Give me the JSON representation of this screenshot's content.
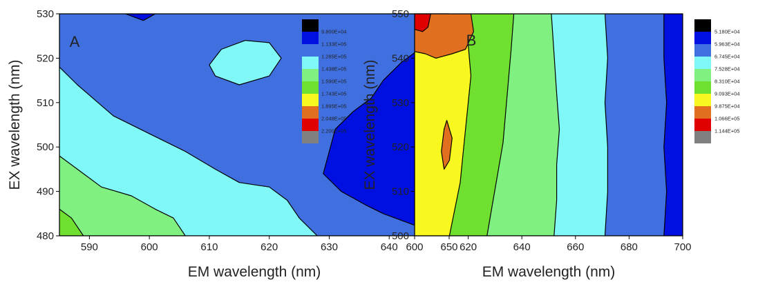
{
  "chart_data": [
    {
      "type": "heatmap",
      "subtype": "contour",
      "panel_label": "A",
      "xlabel": "EM wavelength (nm)",
      "ylabel": "EX wavelength (nm)",
      "xlim": [
        585,
        650
      ],
      "ylim": [
        480,
        530
      ],
      "x_ticks": [
        590,
        600,
        610,
        620,
        630,
        640,
        650
      ],
      "y_ticks": [
        480,
        490,
        500,
        510,
        520,
        530
      ],
      "legend_position": "right",
      "levels": [
        {
          "label": "9.800E+04",
          "color": "#000000"
        },
        {
          "label": "1.133E+05",
          "color": "#0010e0"
        },
        {
          "label": "1.285E+05",
          "color": "#4070e0"
        },
        {
          "label": "1.438E+05",
          "color": "#80f8f8"
        },
        {
          "label": "1.590E+05",
          "color": "#80f080"
        },
        {
          "label": "1.743E+05",
          "color": "#70e030"
        },
        {
          "label": "1.895E+05",
          "color": "#f8f820"
        },
        {
          "label": "2.048E+05",
          "color": "#e07020"
        },
        {
          "label": "2.200E+05",
          "color": "#e00000"
        },
        {
          "label": "",
          "color": "#808080"
        }
      ],
      "regions": [
        {
          "level": 2,
          "polygon": [
            [
              585,
              530
            ],
            [
              650,
              530
            ],
            [
              650,
              480
            ],
            [
              585,
              480
            ]
          ]
        },
        {
          "level": 3,
          "polygon": [
            [
              585,
              518
            ],
            [
              588,
              514
            ],
            [
              594,
              507
            ],
            [
              600,
              503
            ],
            [
              606,
              499
            ],
            [
              611,
              495
            ],
            [
              615,
              492
            ],
            [
              620,
              491
            ],
            [
              623,
              488
            ],
            [
              625,
              484
            ],
            [
              628,
              480
            ],
            [
              585,
              480
            ]
          ]
        },
        {
          "level": 4,
          "polygon": [
            [
              585,
              498
            ],
            [
              588,
              495
            ],
            [
              592,
              491
            ],
            [
              597,
              489
            ],
            [
              601,
              486
            ],
            [
              604,
              484
            ],
            [
              606,
              480
            ],
            [
              585,
              480
            ]
          ]
        },
        {
          "level": 5,
          "polygon": [
            [
              585,
              486
            ],
            [
              587,
              484
            ],
            [
              589,
              480
            ],
            [
              585,
              480
            ]
          ]
        },
        {
          "level": 3,
          "polygon": [
            [
              610,
              518.5
            ],
            [
              612,
              522
            ],
            [
              616,
              524
            ],
            [
              620,
              523.5
            ],
            [
              622,
              520
            ],
            [
              620,
              516
            ],
            [
              615,
              514
            ],
            [
              611,
              516
            ]
          ]
        },
        {
          "level": 1,
          "polygon": [
            [
              650,
              530
            ],
            [
              650,
              480
            ],
            [
              647,
              481
            ],
            [
              643,
              483
            ],
            [
              639,
              485
            ],
            [
              636,
              487
            ],
            [
              632,
              490
            ],
            [
              629,
              494
            ],
            [
              630,
              499
            ],
            [
              631,
              504
            ],
            [
              634,
              508
            ],
            [
              637,
              511
            ],
            [
              639,
              515
            ],
            [
              642,
              519
            ],
            [
              645,
              522
            ],
            [
              648,
              526
            ],
            [
              650,
              530
            ]
          ]
        },
        {
          "level": 1,
          "polygon": [
            [
              596,
              530
            ],
            [
              599,
              528.5
            ],
            [
              601,
              530
            ]
          ]
        }
      ]
    },
    {
      "type": "heatmap",
      "subtype": "contour",
      "panel_label": "B",
      "xlabel": "EM wavelength (nm)",
      "ylabel": "EX wavelength (nm)",
      "xlim": [
        600,
        700
      ],
      "ylim": [
        500,
        550
      ],
      "x_ticks": [
        600,
        620,
        640,
        660,
        680,
        700
      ],
      "y_ticks": [
        500,
        510,
        520,
        530,
        540,
        550
      ],
      "legend_position": "right",
      "levels": [
        {
          "label": "5.180E+04",
          "color": "#000000"
        },
        {
          "label": "5.963E+04",
          "color": "#0010e0"
        },
        {
          "label": "6.745E+04",
          "color": "#4070e0"
        },
        {
          "label": "7.528E+04",
          "color": "#80f8f8"
        },
        {
          "label": "8.310E+04",
          "color": "#80f080"
        },
        {
          "label": "9.093E+04",
          "color": "#70e030"
        },
        {
          "label": "9.875E+04",
          "color": "#f8f820"
        },
        {
          "label": "1.066E+05",
          "color": "#e07020"
        },
        {
          "label": "1.144E+05",
          "color": "#e00000"
        },
        {
          "label": "",
          "color": "#808080"
        }
      ],
      "regions": [
        {
          "level": 6,
          "polygon": [
            [
              600,
              500
            ],
            [
              600,
              550
            ],
            [
              700,
              550
            ],
            [
              700,
              500
            ]
          ]
        },
        {
          "level": 5,
          "polygon": [
            [
              620,
              550
            ],
            [
              700,
              550
            ],
            [
              700,
              500
            ],
            [
              613,
              500
            ],
            [
              615,
              506
            ],
            [
              617,
              512
            ],
            [
              618,
              518
            ],
            [
              619,
              524
            ],
            [
              620,
              530
            ],
            [
              621,
              536
            ],
            [
              620,
              543
            ]
          ]
        },
        {
          "level": 4,
          "polygon": [
            [
              637,
              550
            ],
            [
              700,
              550
            ],
            [
              700,
              500
            ],
            [
              627,
              500
            ],
            [
              629,
              507
            ],
            [
              631,
              514
            ],
            [
              633,
              521
            ],
            [
              634,
              528
            ],
            [
              635,
              535
            ],
            [
              636,
              542
            ]
          ]
        },
        {
          "level": 3,
          "polygon": [
            [
              651,
              550
            ],
            [
              700,
              550
            ],
            [
              700,
              500
            ],
            [
              652,
              500
            ],
            [
              653,
              508
            ],
            [
              653,
              516
            ],
            [
              654,
              524
            ],
            [
              653,
              532
            ],
            [
              652,
              541
            ]
          ]
        },
        {
          "level": 2,
          "polygon": [
            [
              671,
              550
            ],
            [
              700,
              550
            ],
            [
              700,
              500
            ],
            [
              671,
              500
            ],
            [
              672,
              510
            ],
            [
              672,
              520
            ],
            [
              671,
              530
            ],
            [
              672,
              540
            ]
          ]
        },
        {
          "level": 1,
          "polygon": [
            [
              693,
              550
            ],
            [
              700,
              550
            ],
            [
              700,
              500
            ],
            [
              693,
              500
            ],
            [
              694,
              510
            ],
            [
              693,
              520
            ],
            [
              694,
              530
            ],
            [
              693,
              540
            ]
          ]
        },
        {
          "level": 7,
          "polygon": [
            [
              600,
              550
            ],
            [
              621,
              550
            ],
            [
              622,
              546
            ],
            [
              619,
              542
            ],
            [
              614,
              541
            ],
            [
              608,
              540
            ],
            [
              604,
              541
            ],
            [
              600,
              541.5
            ]
          ]
        },
        {
          "level": 8,
          "polygon": [
            [
              600,
              550
            ],
            [
              606,
              550
            ],
            [
              605,
              547
            ],
            [
              603,
              546
            ],
            [
              600,
              546.5
            ]
          ]
        },
        {
          "level": 7,
          "polygon": [
            [
              610,
              519
            ],
            [
              611,
              524
            ],
            [
              612,
              526
            ],
            [
              614,
              522
            ],
            [
              613,
              517
            ],
            [
              611,
              515
            ]
          ]
        }
      ]
    }
  ]
}
